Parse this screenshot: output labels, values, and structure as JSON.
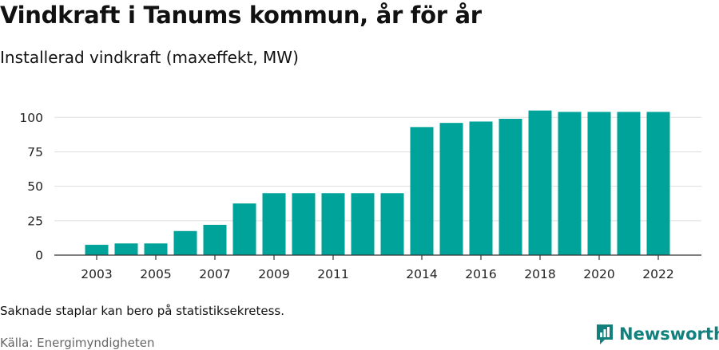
{
  "header": {
    "title": "Vindkraft i Tanums kommun, år för år",
    "subtitle": "Installerad vindkraft (maxeffekt, MW)"
  },
  "footer": {
    "note": "Saknade staplar kan bero på statistiksekretess.",
    "source": "Källa: Energimyndigheten",
    "brand": "Newsworthy"
  },
  "colors": {
    "bar": "#00a39a",
    "grid": "#dddddd",
    "axis": "#333333",
    "brand": "#12807c"
  },
  "chart_data": {
    "type": "bar",
    "title": "Vindkraft i Tanums kommun, år för år",
    "subtitle": "Installerad vindkraft (maxeffekt, MW)",
    "categories": [
      2003,
      2004,
      2005,
      2006,
      2007,
      2008,
      2009,
      2010,
      2011,
      2012,
      2013,
      2014,
      2015,
      2016,
      2017,
      2018,
      2019,
      2020,
      2021,
      2022
    ],
    "values": [
      7.5,
      8.5,
      8.5,
      17.5,
      22,
      37.5,
      45,
      45,
      45,
      45,
      45,
      93,
      96,
      97,
      99,
      105,
      104,
      104,
      104,
      104
    ],
    "x_tick_labels": [
      "2003",
      "2005",
      "2007",
      "2009",
      "2011",
      "2014",
      "2016",
      "2018",
      "2020",
      "2022"
    ],
    "y_ticks": [
      0,
      25,
      50,
      75,
      100
    ],
    "ylim": [
      0,
      110
    ],
    "grid": true,
    "legend": "none"
  }
}
